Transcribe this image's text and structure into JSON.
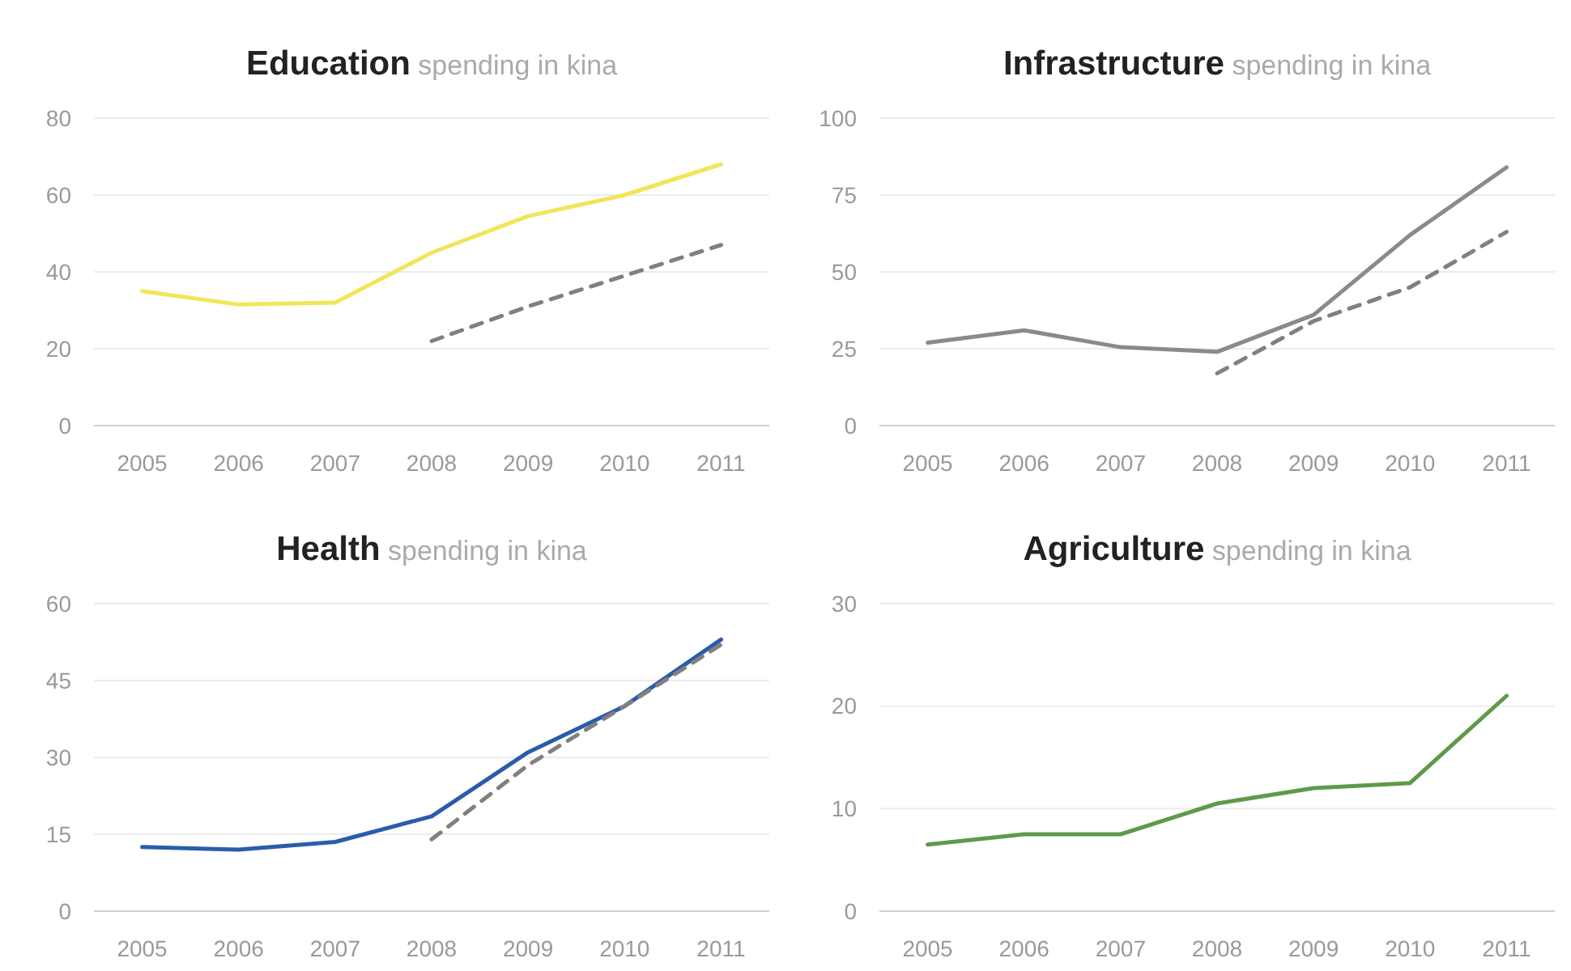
{
  "chart_data": [
    {
      "type": "line",
      "title": "Education",
      "subtitle": "spending in kina",
      "categories": [
        "2005",
        "2006",
        "2007",
        "2008",
        "2009",
        "2010",
        "2011"
      ],
      "ylim": [
        0,
        80
      ],
      "yticks": [
        0,
        20,
        40,
        60,
        80
      ],
      "grid": "y",
      "series": [
        {
          "color": "#f0e65a",
          "values": [
            35,
            31.5,
            32,
            45,
            54.5,
            60,
            68
          ]
        },
        {
          "color": "#808080",
          "line_style": "dashed",
          "values": [
            null,
            null,
            null,
            22,
            31,
            39,
            47
          ]
        }
      ]
    },
    {
      "type": "line",
      "title": "Infrastructure",
      "subtitle": "spending in kina",
      "categories": [
        "2005",
        "2006",
        "2007",
        "2008",
        "2009",
        "2010",
        "2011"
      ],
      "ylim": [
        0,
        100
      ],
      "yticks": [
        0,
        25,
        50,
        75,
        100
      ],
      "grid": "y",
      "series": [
        {
          "color": "#8a8a8a",
          "values": [
            27,
            31,
            25.5,
            24,
            36,
            62,
            84
          ]
        },
        {
          "color": "#808080",
          "line_style": "dashed",
          "values": [
            null,
            null,
            null,
            17,
            34,
            45,
            63
          ]
        }
      ]
    },
    {
      "type": "line",
      "title": "Health",
      "subtitle": "spending in kina",
      "categories": [
        "2005",
        "2006",
        "2007",
        "2008",
        "2009",
        "2010",
        "2011"
      ],
      "ylim": [
        0,
        60
      ],
      "yticks": [
        0,
        15,
        30,
        45,
        60
      ],
      "grid": "y",
      "series": [
        {
          "color": "#2a5cab",
          "values": [
            12.5,
            12,
            13.5,
            18.5,
            31,
            40,
            53
          ]
        },
        {
          "color": "#808080",
          "line_style": "dashed",
          "values": [
            null,
            null,
            null,
            14,
            28.5,
            40,
            52
          ]
        }
      ]
    },
    {
      "type": "line",
      "title": "Agriculture",
      "subtitle": "spending in kina",
      "categories": [
        "2005",
        "2006",
        "2007",
        "2008",
        "2009",
        "2010",
        "2011"
      ],
      "ylim": [
        0,
        30
      ],
      "yticks": [
        0,
        10,
        20,
        30
      ],
      "grid": "y",
      "series": [
        {
          "color": "#5e9a4a",
          "values": [
            6.5,
            7.5,
            7.5,
            10.5,
            12,
            12.5,
            21
          ]
        }
      ]
    }
  ]
}
